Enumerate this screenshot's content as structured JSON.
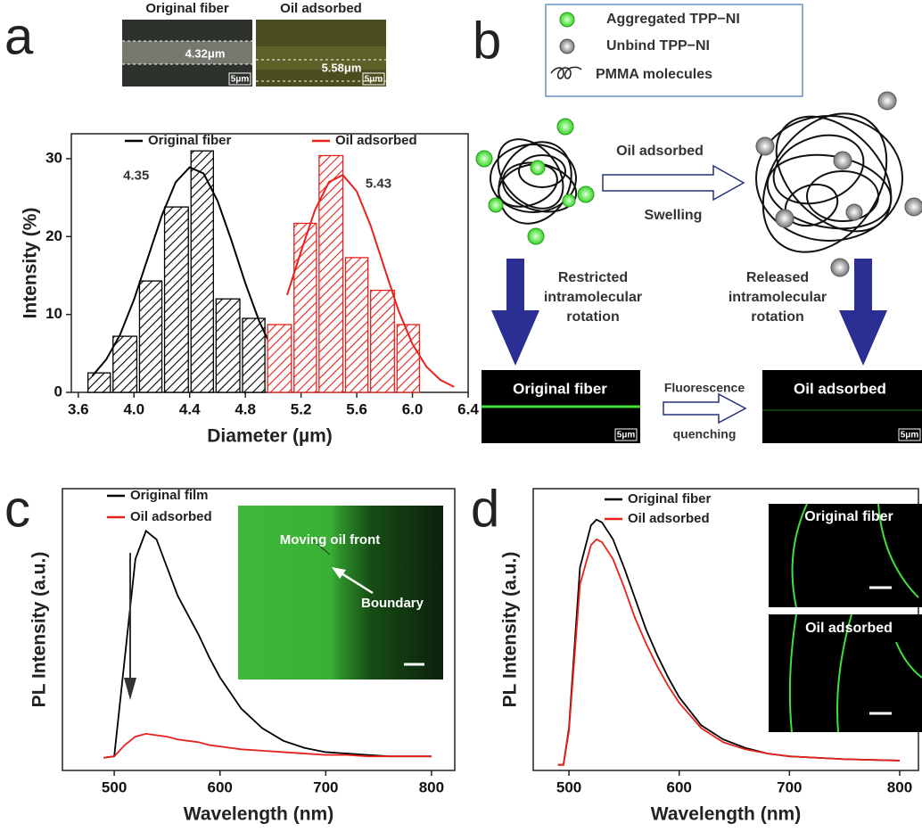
{
  "chart_data": [
    {
      "type": "histogram",
      "xlabel": "Diameter (µm)",
      "ylabel": "Intensity (%)",
      "xlim": [
        3.55,
        6.4
      ],
      "ylim": [
        0,
        33.2
      ],
      "xticks": [
        3.6,
        {
          "value": 4.0,
          "label": "4.0"
        },
        4.4,
        4.8,
        5.2,
        5.6,
        {
          "value": 6.0,
          "label": "6.0"
        },
        6.4
      ],
      "yticks": [
        0,
        10,
        20,
        30
      ],
      "legend": "top",
      "series": [
        {
          "name": "Original fiber",
          "color": "#000000",
          "bins": [
            3.66,
            3.84,
            4.03,
            4.21,
            4.4,
            4.58,
            4.77,
            4.95
          ],
          "values": [
            2.5,
            7.2,
            14.3,
            23.8,
            31,
            12,
            9.5
          ],
          "fit_x": [
            3.7,
            3.8,
            3.9,
            4.0,
            4.1,
            4.2,
            4.3,
            4.4,
            4.5,
            4.6,
            4.7,
            4.8,
            4.9,
            5.0
          ],
          "fit_values": [
            2.1,
            4.2,
            7.4,
            11.9,
            17.3,
            22.7,
            27,
            28.9,
            28.1,
            24.6,
            19.5,
            14,
            9.1,
            5.3
          ],
          "peak_label": "4.35"
        },
        {
          "name": "Oil adsorbed",
          "color": "#e8211c",
          "bins": [
            4.95,
            5.14,
            5.32,
            5.51,
            5.69,
            5.88,
            6.06
          ],
          "values": [
            8.7,
            21.7,
            30.4,
            17.3,
            13.1,
            8.7
          ],
          "fit_x": [
            5.1,
            5.2,
            5.3,
            5.4,
            5.5,
            5.6,
            5.7,
            5.8,
            5.9,
            6.0,
            6.1,
            6.2,
            6.3
          ],
          "fit_values": [
            12.5,
            18.1,
            23.4,
            27,
            27.9,
            25.8,
            21.4,
            15.9,
            10.5,
            6.2,
            3.3,
            1.6,
            0.7
          ],
          "peak_label": "5.43"
        }
      ]
    },
    {
      "type": "line",
      "xlabel": "Wavelength (nm)",
      "ylabel": "PL Intensity (a.u.)",
      "xlim": [
        451,
        822
      ],
      "ylim": [
        0,
        100
      ],
      "xticks": [
        500,
        600,
        700,
        800
      ],
      "legend": "upper left",
      "x": [
        490,
        500,
        510,
        520,
        530,
        540,
        550,
        560,
        570,
        580,
        590,
        600,
        620,
        640,
        660,
        680,
        700,
        720,
        740,
        760,
        780,
        800
      ],
      "series": [
        {
          "name": "Original film",
          "color": "#000000",
          "values": [
            4.5,
            5,
            40,
            75,
            85,
            82,
            72,
            62,
            55,
            48,
            40,
            33,
            22,
            15,
            10.5,
            8,
            6.5,
            6,
            5.5,
            5,
            5,
            5
          ]
        },
        {
          "name": "Oil adsorbed",
          "color": "#e8211c",
          "values": [
            4.5,
            5,
            9,
            12,
            13,
            12.5,
            12,
            11,
            10.5,
            10,
            9,
            8.5,
            7.5,
            7,
            6.5,
            6,
            5.5,
            5.5,
            5,
            5,
            5,
            5
          ]
        }
      ]
    },
    {
      "type": "line",
      "xlabel": "Wavelength (nm)",
      "ylabel": "PL Intensity (a.u.)",
      "xlim": [
        467.6,
        817
      ],
      "ylim": [
        0,
        100
      ],
      "xticks": [
        500,
        600,
        700,
        800
      ],
      "legend": "upper center",
      "x": [
        490,
        495,
        500,
        510,
        520,
        525,
        530,
        540,
        550,
        560,
        570,
        580,
        590,
        600,
        620,
        640,
        660,
        680,
        700,
        750,
        800
      ],
      "series": [
        {
          "name": "Original fiber",
          "color": "#000000",
          "values": [
            2,
            2,
            15,
            72,
            87,
            89,
            88,
            82,
            72,
            61,
            50,
            41,
            33,
            26,
            16,
            11,
            8,
            6,
            5,
            4,
            3.5
          ]
        },
        {
          "name": "Oil adsorbed",
          "color": "#e8211c",
          "values": [
            2,
            2,
            14,
            66,
            80,
            82,
            81,
            75,
            65,
            54,
            45,
            37,
            30,
            24,
            15,
            10,
            7.5,
            6,
            5,
            4,
            3.5
          ]
        }
      ]
    }
  ],
  "figure": {
    "panel_labels": [
      "a",
      "b",
      "c",
      "d"
    ],
    "a_images": [
      {
        "title": "Original fiber",
        "measure": "4.32μm",
        "scale": "5μm"
      },
      {
        "title": "Oil adsorbed",
        "measure": "5.58μm",
        "scale": "5μm"
      }
    ],
    "b": {
      "legend": [
        "Aggregated TPP−NI",
        "Unbind TPP−NI",
        "PMMA molecules"
      ],
      "arrow_top": "Oil adsorbed",
      "arrow_bottom": "Swelling",
      "left_text": [
        "Restricted",
        "intramolecular",
        "rotation"
      ],
      "right_text": [
        "Released",
        "intramolecular",
        "rotation"
      ],
      "images": [
        {
          "title": "Original fiber",
          "scale": "5μm"
        },
        {
          "title": "Oil adsorbed",
          "scale": "5μm"
        }
      ],
      "middle": [
        "Fluorescence",
        "quenching"
      ]
    },
    "c_inset": {
      "text": "Moving oil front",
      "pointer": "Boundary"
    },
    "d_insets": [
      "Original fiber",
      "Oil adsorbed"
    ]
  }
}
